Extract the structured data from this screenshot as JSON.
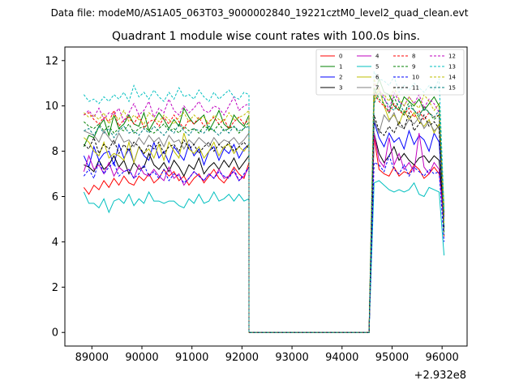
{
  "figure": {
    "suptitle": "Data file: modeM0/AS1A05_063T03_9000002840_19221cztM0_level2_quad_clean.evt"
  },
  "chart_data": {
    "type": "line",
    "title": "Quadrant 1 module wise count rates with 100.0s bins.",
    "xlabel": "",
    "ylabel": "",
    "x_offset_text": "+2.932e8",
    "x_offset_value": 293200000,
    "xlim": [
      88460,
      96500
    ],
    "ylim": [
      -0.6,
      12.6
    ],
    "xticks": [
      89000,
      90000,
      91000,
      92000,
      93000,
      94000,
      95000,
      96000
    ],
    "xtick_labels": [
      "89000",
      "90000",
      "91000",
      "92000",
      "93000",
      "94000",
      "95000",
      "96000"
    ],
    "yticks": [
      0,
      2,
      4,
      6,
      8,
      10,
      12
    ],
    "ytick_labels": [
      "0",
      "2",
      "4",
      "6",
      "8",
      "10",
      "12"
    ],
    "grid": false,
    "legend_placement": "top-right",
    "segments": {
      "seg1": {
        "x_start": 88840,
        "x_step": 100,
        "count": 34
      },
      "gap": {
        "x": [
          92140,
          92240,
          94540
        ],
        "value": 0
      },
      "seg2": {
        "x_start": 94640,
        "x_step": 100,
        "count": 15
      }
    },
    "series": [
      {
        "name": "0",
        "color": "#ff0000",
        "dashed": false,
        "seg1": [
          6.4,
          6.1,
          6.5,
          6.3,
          6.7,
          6.4,
          6.8,
          6.5,
          6.9,
          6.6,
          6.5,
          6.9,
          6.7,
          7.0,
          6.6,
          6.8,
          7.2,
          6.9,
          7.1,
          6.7,
          6.9,
          6.5,
          6.8,
          7.0,
          6.6,
          6.9,
          7.2,
          6.8,
          6.6,
          6.9,
          7.3,
          7.0,
          6.8,
          7.5
        ],
        "seg2": [
          8.6,
          7.2,
          7.0,
          6.9,
          7.3,
          6.9,
          7.1,
          7.0,
          7.4,
          7.2,
          6.8,
          7.0,
          7.3,
          7.0,
          5.2
        ]
      },
      {
        "name": "1",
        "color": "#008000",
        "dashed": false,
        "seg1": [
          8.2,
          8.7,
          8.6,
          9.1,
          9.4,
          8.7,
          9.6,
          9.0,
          9.2,
          9.6,
          9.2,
          9.1,
          9.7,
          8.9,
          9.3,
          9.7,
          9.4,
          9.0,
          9.4,
          9.1,
          9.9,
          9.5,
          9.2,
          9.4,
          9.6,
          8.9,
          9.3,
          9.8,
          9.2,
          9.0,
          9.6,
          9.3,
          9.1,
          9.6
        ],
        "seg2": [
          10.4,
          11.2,
          10.6,
          10.5,
          10.0,
          9.8,
          10.4,
          10.2,
          10.0,
          10.3,
          9.8,
          10.1,
          10.4,
          10.0,
          5.3
        ]
      },
      {
        "name": "2",
        "color": "#0000ff",
        "dashed": false,
        "seg1": [
          7.8,
          7.3,
          8.2,
          7.6,
          7.9,
          8.0,
          7.4,
          8.3,
          7.7,
          8.1,
          7.5,
          8.2,
          7.8,
          7.6,
          8.4,
          7.7,
          8.0,
          7.5,
          8.2,
          7.9,
          7.6,
          8.3,
          7.8,
          8.1,
          7.4,
          8.0,
          8.2,
          7.6,
          8.1,
          7.9,
          8.3,
          7.7,
          8.1,
          8.3
        ],
        "seg2": [
          9.3,
          8.6,
          8.2,
          8.8,
          8.4,
          8.6,
          8.1,
          8.9,
          8.3,
          8.7,
          8.5,
          8.0,
          8.8,
          8.4,
          5.0
        ]
      },
      {
        "name": "3",
        "color": "#000000",
        "dashed": false,
        "seg1": [
          7.4,
          7.3,
          7.1,
          7.6,
          7.2,
          7.4,
          7.8,
          7.3,
          7.6,
          7.0,
          7.5,
          7.2,
          7.3,
          7.9,
          7.4,
          7.2,
          7.5,
          7.1,
          7.6,
          7.3,
          6.9,
          7.4,
          7.2,
          7.7,
          7.0,
          7.3,
          7.5,
          7.2,
          7.6,
          7.3,
          7.7,
          7.2,
          7.5,
          7.8
        ],
        "seg2": [
          8.8,
          7.9,
          7.5,
          7.8,
          8.2,
          7.6,
          7.9,
          7.6,
          7.4,
          7.7,
          7.8,
          7.5,
          7.8,
          7.6,
          5.1
        ]
      },
      {
        "name": "4",
        "color": "#bf00bf",
        "dashed": false,
        "seg1": [
          7.1,
          7.8,
          7.2,
          7.4,
          7.0,
          7.5,
          6.9,
          7.3,
          7.1,
          7.2,
          6.8,
          7.4,
          7.0,
          6.9,
          7.2,
          6.9,
          6.7,
          7.3,
          6.8,
          7.0,
          6.5,
          6.8,
          7.1,
          6.9,
          6.7,
          7.0,
          6.8,
          7.2,
          6.8,
          6.9,
          7.1,
          6.7,
          6.9,
          7.3
        ],
        "seg2": [
          8.8,
          7.6,
          7.3,
          8.6,
          7.4,
          7.9,
          7.2,
          7.5,
          7.1,
          8.8,
          7.3,
          7.0,
          7.5,
          7.2,
          4.6
        ]
      },
      {
        "name": "5",
        "color": "#00bfbf",
        "dashed": false,
        "seg1": [
          6.2,
          5.7,
          5.7,
          5.5,
          5.9,
          5.3,
          5.8,
          5.9,
          5.7,
          6.1,
          5.6,
          5.9,
          5.7,
          6.2,
          5.8,
          5.8,
          5.7,
          5.8,
          5.8,
          5.6,
          5.5,
          5.9,
          5.7,
          6.1,
          5.7,
          5.8,
          6.2,
          5.8,
          5.9,
          6.1,
          5.8,
          6.1,
          5.8,
          5.9
        ],
        "seg2": [
          6.6,
          6.7,
          6.5,
          6.3,
          6.2,
          6.3,
          6.2,
          6.3,
          6.6,
          6.1,
          6.0,
          6.4,
          6.3,
          6.2,
          3.4
        ]
      },
      {
        "name": "6",
        "color": "#bfbf00",
        "dashed": false,
        "seg1": [
          8.6,
          8.4,
          8.0,
          7.8,
          8.4,
          7.7,
          7.9,
          7.8,
          7.6,
          8.4,
          7.5,
          8.2,
          7.9,
          8.1,
          7.7,
          8.3,
          7.6,
          8.4,
          8.0,
          7.7,
          8.8,
          8.1,
          7.9,
          8.2,
          7.7,
          8.0,
          8.4,
          7.8,
          8.2,
          8.3,
          7.9,
          8.2,
          8.0,
          8.3
        ],
        "seg2": [
          10.2,
          10.8,
          10.0,
          9.4,
          9.6,
          9.2,
          9.8,
          9.4,
          9.7,
          9.3,
          9.1,
          9.4,
          8.8,
          9.2,
          5.6
        ]
      },
      {
        "name": "7",
        "color": "#808080",
        "dashed": false,
        "seg1": [
          8.9,
          8.8,
          8.7,
          8.4,
          8.9,
          8.6,
          8.3,
          8.8,
          8.4,
          8.5,
          8.2,
          8.6,
          8.3,
          8.7,
          8.4,
          8.6,
          8.2,
          8.7,
          8.4,
          8.5,
          8.1,
          8.5,
          8.3,
          8.6,
          8.4,
          8.2,
          8.6,
          8.3,
          8.5,
          8.4,
          8.6,
          8.3,
          8.5,
          8.8
        ],
        "seg2": [
          9.4,
          8.8,
          9.6,
          9.3,
          9.7,
          9.1,
          9.0,
          9.4,
          9.2,
          9.5,
          9.0,
          9.3,
          8.9,
          9.1,
          4.5
        ]
      },
      {
        "name": "8",
        "color": "#ff0000",
        "dashed": true,
        "seg1": [
          9.6,
          9.7,
          9.4,
          9.2,
          9.5,
          9.3,
          9.8,
          9.1,
          9.4,
          9.5,
          9.2,
          9.6,
          9.0,
          9.3,
          9.4,
          9.1,
          9.5,
          9.2,
          9.6,
          9.3,
          9.0,
          9.4,
          9.2,
          9.5,
          9.1,
          9.3,
          9.5,
          9.2,
          9.4,
          9.0,
          9.3,
          9.5,
          9.2,
          9.4
        ],
        "seg2": [
          10.6,
          10.2,
          10.0,
          9.7,
          10.1,
          9.8,
          9.6,
          9.9,
          9.5,
          9.8,
          9.4,
          9.7,
          9.5,
          9.6,
          4.2
        ]
      },
      {
        "name": "9",
        "color": "#008000",
        "dashed": true,
        "seg1": [
          9.3,
          9.1,
          9.0,
          9.2,
          8.9,
          9.1,
          8.8,
          9.0,
          8.9,
          9.2,
          8.8,
          9.0,
          9.1,
          8.9,
          8.8,
          9.0,
          9.2,
          8.9,
          9.0,
          8.8,
          9.1,
          8.9,
          9.0,
          8.8,
          9.1,
          9.0,
          8.9,
          9.2,
          8.9,
          9.0,
          9.1,
          8.8,
          9.0,
          9.3
        ],
        "seg2": [
          10.8,
          10.3,
          10.1,
          9.7,
          10.4,
          9.9,
          9.6,
          10.2,
          9.8,
          9.5,
          10.0,
          9.7,
          9.4,
          9.6,
          4.3
        ]
      },
      {
        "name": "10",
        "color": "#0000ff",
        "dashed": true,
        "seg1": [
          6.9,
          7.2,
          6.8,
          7.6,
          7.0,
          7.3,
          7.5,
          6.9,
          7.1,
          7.2,
          6.8,
          7.0,
          7.4,
          6.9,
          7.1,
          6.8,
          7.2,
          6.7,
          7.0,
          6.9,
          6.6,
          6.8,
          7.1,
          6.9,
          6.7,
          7.0,
          6.8,
          7.1,
          6.9,
          6.8,
          7.2,
          6.7,
          7.0,
          7.3
        ],
        "seg2": [
          7.5,
          7.4,
          7.1,
          7.8,
          7.2,
          7.0,
          7.4,
          6.9,
          7.3,
          7.1,
          6.9,
          7.2,
          7.0,
          7.1,
          4.0
        ]
      },
      {
        "name": "11",
        "color": "#000000",
        "dashed": true,
        "seg1": [
          8.3,
          8.1,
          8.6,
          7.9,
          8.3,
          8.1,
          8.5,
          7.9,
          8.3,
          8.0,
          8.4,
          8.2,
          7.9,
          8.3,
          8.1,
          8.4,
          7.9,
          8.2,
          8.3,
          8.0,
          8.5,
          8.1,
          8.3,
          7.9,
          8.2,
          8.4,
          8.0,
          8.3,
          8.1,
          8.4,
          8.0,
          8.2,
          8.4,
          8.1
        ],
        "seg2": [
          9.6,
          8.9,
          8.7,
          9.1,
          8.8,
          9.3,
          9.0,
          9.7,
          8.9,
          9.2,
          9.6,
          9.1,
          9.3,
          9.0,
          4.6
        ]
      },
      {
        "name": "12",
        "color": "#bf00bf",
        "dashed": true,
        "seg1": [
          9.6,
          9.8,
          9.5,
          9.9,
          9.4,
          9.7,
          9.6,
          9.9,
          9.3,
          9.7,
          10.1,
          9.6,
          9.8,
          10.2,
          9.5,
          9.9,
          9.7,
          10.3,
          9.8,
          9.6,
          10.0,
          9.7,
          9.9,
          10.2,
          9.8,
          9.7,
          10.0,
          9.9,
          9.6,
          10.0,
          10.4,
          9.8,
          10.0,
          10.1
        ],
        "seg2": [
          11.0,
          10.7,
          10.4,
          9.8,
          10.6,
          10.2,
          10.0,
          10.4,
          10.1,
          10.5,
          9.9,
          10.3,
          10.1,
          9.7,
          5.0
        ]
      },
      {
        "name": "13",
        "color": "#00bfbf",
        "dashed": true,
        "seg1": [
          10.5,
          10.2,
          10.3,
          10.1,
          10.4,
          10.2,
          10.5,
          10.3,
          10.6,
          10.2,
          10.9,
          10.4,
          10.6,
          10.3,
          10.7,
          10.4,
          10.2,
          10.6,
          10.3,
          10.8,
          10.4,
          10.5,
          10.3,
          10.7,
          10.4,
          10.2,
          10.6,
          10.3,
          10.5,
          10.7,
          10.4,
          10.3,
          10.6,
          10.5
        ],
        "seg2": [
          11.5,
          11.2,
          11.1,
          10.9,
          11.3,
          10.6,
          10.9,
          10.7,
          11.0,
          10.8,
          10.6,
          10.9,
          10.7,
          11.2,
          5.4
        ]
      },
      {
        "name": "14",
        "color": "#bfbf00",
        "dashed": true,
        "seg1": [
          9.7,
          9.5,
          9.6,
          9.4,
          9.7,
          9.2,
          9.6,
          9.4,
          9.8,
          9.3,
          9.6,
          9.4,
          9.2,
          9.7,
          9.5,
          9.3,
          9.6,
          9.4,
          9.2,
          9.5,
          9.7,
          9.3,
          9.6,
          9.4,
          9.5,
          9.2,
          9.6,
          9.4,
          9.3,
          9.7,
          9.4,
          9.5,
          9.6,
          9.8
        ],
        "seg2": [
          11.2,
          10.6,
          10.5,
          10.2,
          10.8,
          10.3,
          10.0,
          10.4,
          10.1,
          9.9,
          10.5,
          10.2,
          9.8,
          10.1,
          4.8
        ]
      },
      {
        "name": "15",
        "color": "#008080",
        "dashed": true,
        "seg1": [
          8.9,
          9.0,
          8.7,
          9.1,
          8.8,
          9.0,
          8.6,
          8.9,
          9.1,
          8.8,
          8.9,
          8.7,
          9.0,
          8.8,
          9.1,
          8.9,
          8.7,
          9.0,
          8.8,
          9.2,
          8.9,
          8.7,
          9.0,
          8.9,
          8.8,
          9.1,
          8.9,
          8.7,
          9.0,
          8.8,
          9.1,
          8.9,
          9.0,
          9.1
        ],
        "seg2": [
          10.1,
          10.6,
          10.3,
          10.0,
          9.8,
          10.2,
          9.7,
          10.0,
          9.8,
          9.6,
          9.9,
          9.7,
          9.5,
          9.8,
          4.6
        ]
      }
    ]
  }
}
